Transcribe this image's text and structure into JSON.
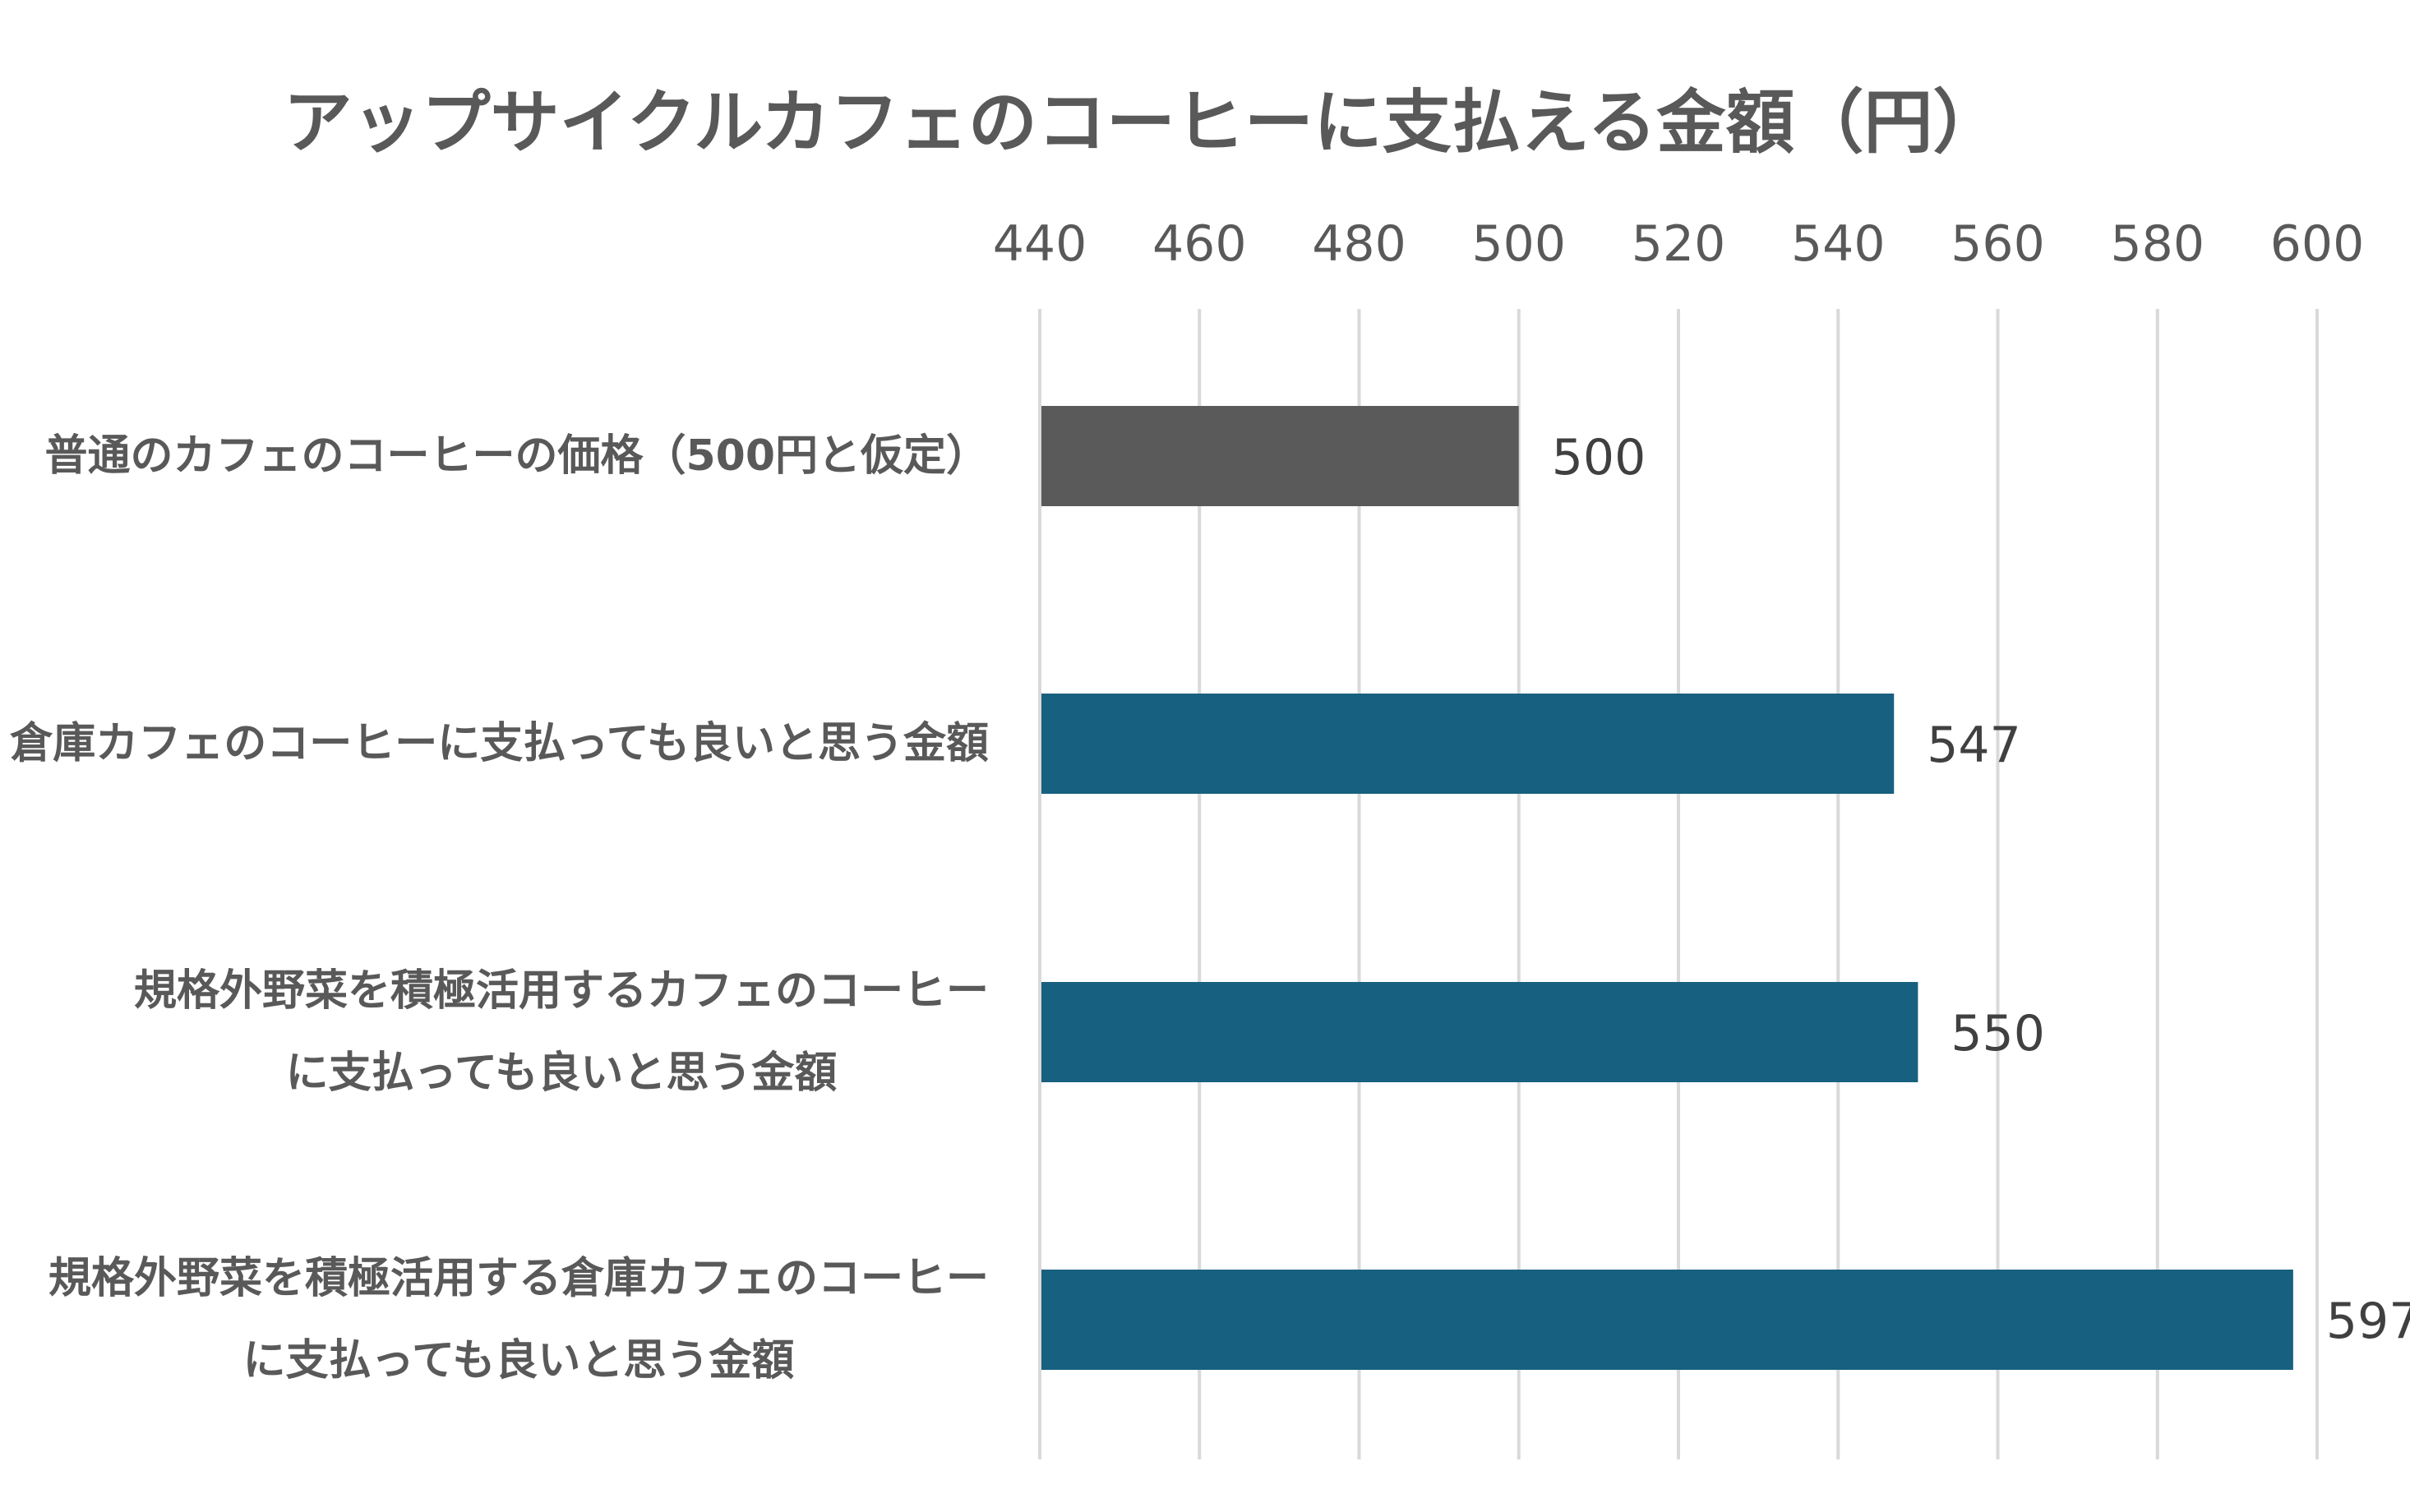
{
  "chart_data": {
    "type": "bar",
    "orientation": "horizontal",
    "title": "アップサイクルカフェのコーヒーに支払える金額（円）",
    "categories": [
      [
        "普通のカフェのコーヒーの価格（500円と仮定）"
      ],
      [
        "倉庫カフェのコーヒーに支払っても良いと思う金額"
      ],
      [
        "規格外野菜を積極活用するカフェのコーヒー",
        "に支払っても良いと思う金額"
      ],
      [
        "規格外野菜を積極活用する倉庫カフェのコーヒー",
        "に支払っても良いと思う金額"
      ]
    ],
    "values": [
      500,
      547,
      550,
      597
    ],
    "data_labels": [
      "500",
      "547",
      "550",
      "597"
    ],
    "bar_colors": [
      "#5a5a5a",
      "#17607f",
      "#17607f",
      "#17607f"
    ],
    "xlim": [
      440,
      600
    ],
    "x_ticks": [
      "440",
      "460",
      "480",
      "500",
      "520",
      "540",
      "560",
      "580",
      "600"
    ],
    "axis_position": "top",
    "grid": "vertical",
    "grid_color": "#d9d9d9",
    "xlabel": "",
    "ylabel": ""
  }
}
